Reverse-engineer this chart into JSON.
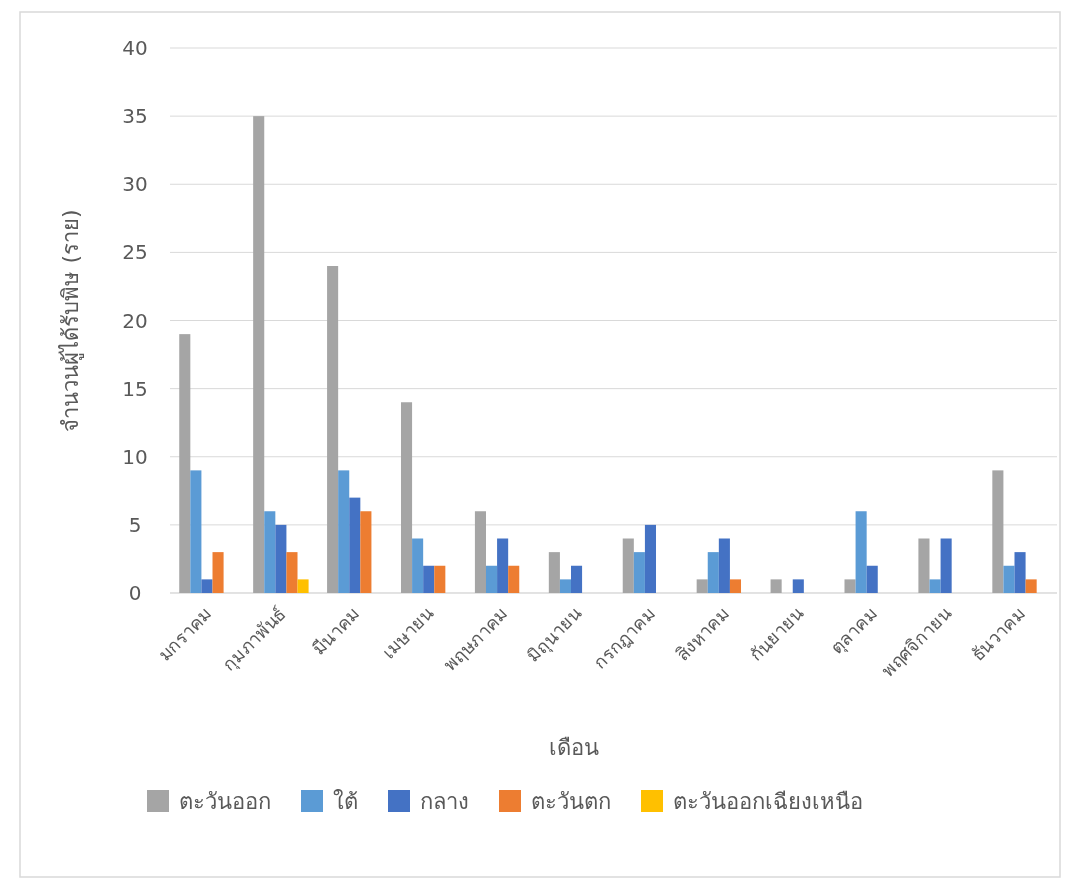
{
  "chart_data": {
    "type": "bar",
    "xlabel": "เดือน",
    "ylabel": "จำนวนผู้ได้รับพิษ (ราย)",
    "categories": [
      "มกราคม",
      "กุมภาพันธ์",
      "มีนาคม",
      "เมษายน",
      "พฤษภาคม",
      "มิถุนายน",
      "กรกฎาคม",
      "สิงหาคม",
      "กันยายน",
      "ตุลาคม",
      "พฤศจิกายน",
      "ธันวาคม"
    ],
    "series": [
      {
        "name": "ตะวันออก",
        "color": "#a5a5a5",
        "values": [
          19,
          35,
          24,
          14,
          6,
          3,
          4,
          1,
          1,
          1,
          4,
          9
        ]
      },
      {
        "name": "ใต้",
        "color": "#5b9bd5",
        "values": [
          9,
          6,
          9,
          4,
          2,
          1,
          3,
          3,
          0,
          6,
          1,
          2
        ]
      },
      {
        "name": "กลาง",
        "color": "#4472c4",
        "values": [
          1,
          5,
          7,
          2,
          4,
          2,
          5,
          4,
          1,
          2,
          4,
          3
        ]
      },
      {
        "name": "ตะวันตก",
        "color": "#ed7d31",
        "values": [
          3,
          3,
          6,
          2,
          2,
          0,
          0,
          1,
          0,
          0,
          0,
          1
        ]
      },
      {
        "name": "ตะวันออกเฉียงเหนือ",
        "color": "#ffc000",
        "values": [
          0,
          1,
          0,
          0,
          0,
          0,
          0,
          0,
          0,
          0,
          0,
          0
        ]
      }
    ],
    "ylim": [
      0,
      40
    ],
    "yticks": [
      0,
      5,
      10,
      15,
      20,
      25,
      30,
      35,
      40
    ],
    "grid": "y",
    "legend": "bottom"
  }
}
